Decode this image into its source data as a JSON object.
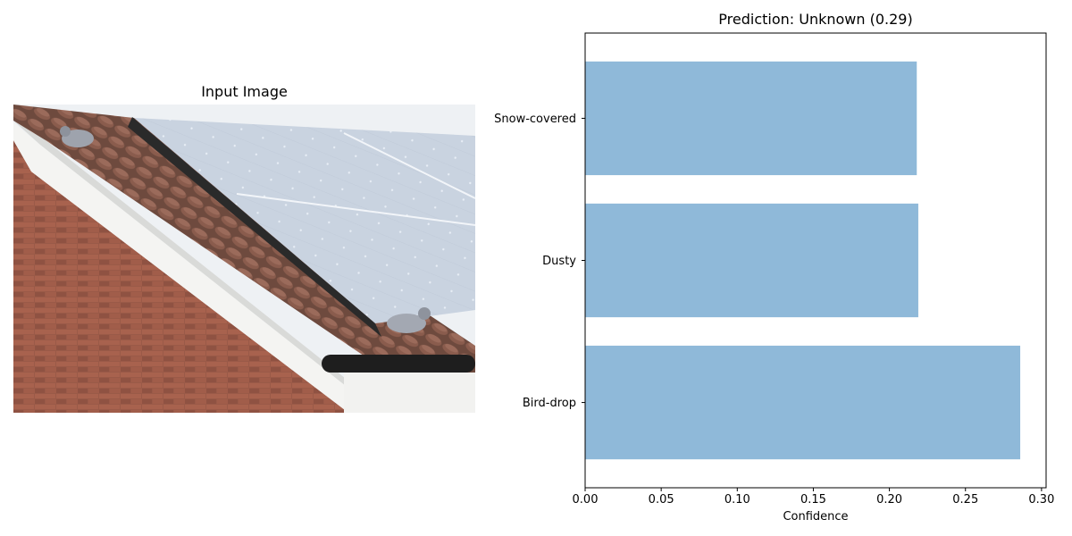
{
  "left_panel": {
    "title": "Input Image",
    "image_subject": "roof-with-solar-panels-and-pigeons"
  },
  "chart_data": {
    "type": "bar",
    "orientation": "horizontal",
    "title": "Prediction: Unknown (0.29)",
    "xlabel": "Confidence",
    "ylabel": "",
    "categories": [
      "Bird-drop",
      "Dusty",
      "Snow-covered"
    ],
    "values": [
      0.286,
      0.219,
      0.218
    ],
    "xlim": [
      0.0,
      0.303
    ],
    "xticks": [
      "0.00",
      "0.05",
      "0.10",
      "0.15",
      "0.20",
      "0.25",
      "0.30"
    ],
    "xtick_values": [
      0.0,
      0.05,
      0.1,
      0.15,
      0.2,
      0.25,
      0.3
    ],
    "bar_color": "#8fb9d9",
    "grid": false,
    "legend": "none"
  }
}
